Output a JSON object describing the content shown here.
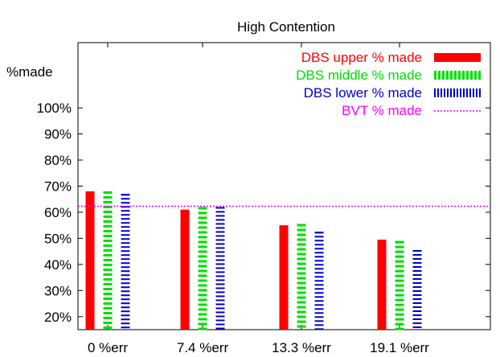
{
  "chart_data": {
    "type": "bar",
    "title": "High Contention",
    "ylabel": "%made",
    "categories": [
      "0 %err",
      "7.4 %err",
      "13.3 %err",
      "19.1 %err"
    ],
    "ylim": [
      15,
      125
    ],
    "yticks": [
      20,
      30,
      40,
      50,
      60,
      70,
      80,
      90,
      100
    ],
    "ytick_labels": [
      "20%",
      "30%",
      "40%",
      "50%",
      "60%",
      "70%",
      "80%",
      "90%",
      "100%"
    ],
    "series": [
      {
        "name": "DBS upper % made",
        "values": [
          68,
          61,
          55,
          49.5
        ],
        "color": "#ff0000",
        "style": "solid"
      },
      {
        "name": "DBS middle % made",
        "values": [
          68,
          62,
          55.5,
          49
        ],
        "color": "#00dd00",
        "style": "dashed-h"
      },
      {
        "name": "DBS lower % made",
        "values": [
          67,
          62,
          52.5,
          45.5
        ],
        "color": "#0000cc",
        "style": "dashed-h-fine"
      }
    ],
    "reference_line": {
      "name": "BVT % made",
      "value": 62.3,
      "color": "#ff00ff",
      "style": "dotted"
    },
    "legend_position": "top-right",
    "grid": false
  }
}
